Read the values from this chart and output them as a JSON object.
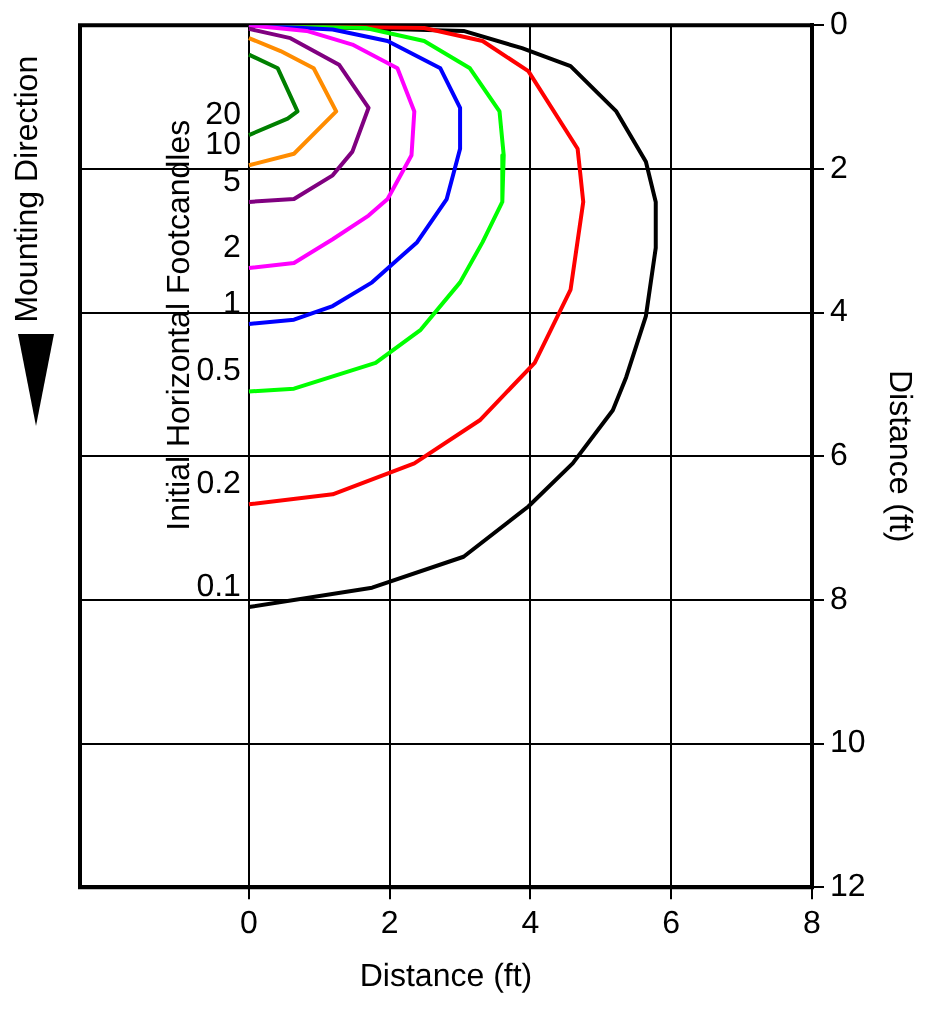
{
  "chart_data": {
    "type": "line",
    "xlabel": "Distance (ft)",
    "ylabel": "Distance (ft)",
    "annotations": [
      "Initial Horizontal Footcandles",
      "Mounting Direction"
    ],
    "xlim": [
      -2.4,
      8
    ],
    "xticks": [
      0,
      2,
      4,
      6,
      8
    ],
    "ylim": [
      12,
      0
    ],
    "yticks": [
      0,
      2,
      4,
      6,
      8,
      10,
      12
    ],
    "grid": true,
    "legend": false,
    "marker": "none",
    "line_style": "solid",
    "series": [
      {
        "name": "20",
        "color": "#008000",
        "x": [
          0,
          0.41,
          0.69,
          0.55,
          0
        ],
        "values": [
          0.41,
          0.6,
          1.2,
          1.3,
          1.53
        ]
      },
      {
        "name": "10",
        "color": "#ff8c00",
        "x": [
          0,
          0.45,
          0.92,
          1.24,
          0.64,
          0
        ],
        "values": [
          0.18,
          0.36,
          0.6,
          1.2,
          1.79,
          1.95
        ]
      },
      {
        "name": "5",
        "color": "#800080",
        "x": [
          0,
          0.59,
          1.28,
          1.7,
          1.47,
          1.19,
          0.64,
          0
        ],
        "values": [
          0.05,
          0.18,
          0.55,
          1.15,
          1.76,
          2.09,
          2.42,
          2.46
        ]
      },
      {
        "name": "2",
        "color": "#ff00ff",
        "x": [
          0,
          0.82,
          1.47,
          2.11,
          2.35,
          2.31,
          1.97,
          1.7,
          1.19,
          0.64,
          0
        ],
        "values": [
          0,
          0.08,
          0.27,
          0.6,
          1.2,
          1.81,
          2.42,
          2.65,
          2.98,
          3.31,
          3.38
        ]
      },
      {
        "name": "1",
        "color": "#0000ff",
        "x": [
          0,
          1.19,
          1.97,
          2.72,
          3.0,
          3.0,
          2.81,
          2.39,
          1.75,
          1.19,
          0.64,
          0
        ],
        "values": [
          0,
          0.06,
          0.22,
          0.6,
          1.15,
          1.72,
          2.42,
          3.02,
          3.58,
          3.91,
          4.1,
          4.16
        ]
      },
      {
        "name": "0.5",
        "color": "#00ff00",
        "x": [
          0,
          1.66,
          2.49,
          3.14,
          3.56,
          3.62,
          3.6,
          3.32,
          3.0,
          2.44,
          1.8,
          0.64,
          0
        ],
        "values": [
          0,
          0.04,
          0.22,
          0.6,
          1.2,
          1.81,
          2.46,
          3.02,
          3.58,
          4.24,
          4.7,
          5.06,
          5.1
        ]
      },
      {
        "name": "0.2",
        "color": "#ff0000",
        "x": [
          0,
          2.49,
          3.32,
          3.97,
          4.67,
          4.75,
          4.57,
          4.06,
          3.28,
          2.35,
          1.19,
          0
        ],
        "values": [
          0,
          0.04,
          0.22,
          0.64,
          1.72,
          2.46,
          3.68,
          4.7,
          5.5,
          6.1,
          6.53,
          6.67
        ]
      },
      {
        "name": "0.1",
        "color": "#000000",
        "x": [
          0,
          3.05,
          3.88,
          4.57,
          5.22,
          5.64,
          5.78,
          5.78,
          5.64,
          5.36,
          5.17,
          4.6,
          3.97,
          3.05,
          1.75,
          0
        ],
        "values": [
          0,
          0.08,
          0.32,
          0.57,
          1.2,
          1.9,
          2.46,
          3.1,
          4.05,
          4.9,
          5.36,
          6.1,
          6.7,
          7.4,
          7.83,
          8.1
        ]
      }
    ]
  }
}
